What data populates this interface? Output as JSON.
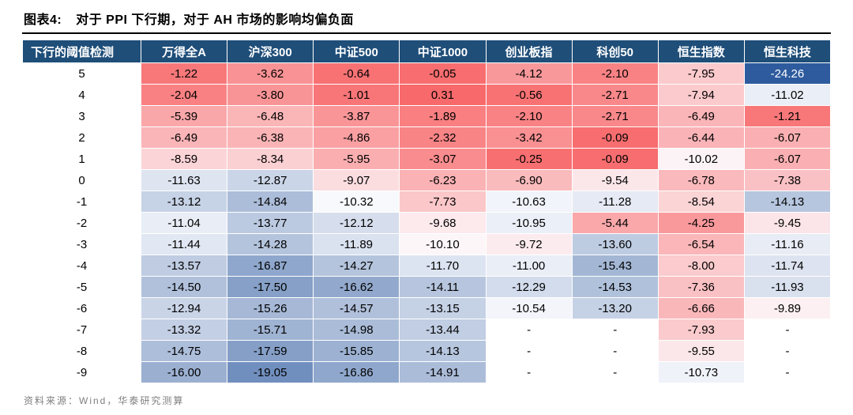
{
  "header": {
    "label": "图表4:",
    "title": "对于 PPI 下行期，对于 AH 市场的影响均偏负面"
  },
  "footer": {
    "source": "资料来源：Wind，华泰研究测算"
  },
  "colors": {
    "header_bg": "#1F4E79",
    "header_text": "#FFFFFF",
    "rule": "#000000",
    "source_text": "#7F7F7F"
  },
  "chart_data": {
    "type": "heatmap",
    "title": "对于 PPI 下行期，对于 AH 市场的影响均偏负面",
    "row_axis_label": "下行的阈值检测",
    "columns": [
      "万得全A",
      "沪深300",
      "中证500",
      "中证1000",
      "创业板指",
      "科创50",
      "恒生指数",
      "恒生科技"
    ],
    "rows": [
      {
        "threshold": "5",
        "values": [
          -1.22,
          -3.62,
          -0.64,
          -0.05,
          -4.12,
          -2.1,
          -7.95,
          -24.26
        ]
      },
      {
        "threshold": "4",
        "values": [
          -2.04,
          -3.8,
          -1.01,
          0.31,
          -0.56,
          -2.71,
          -7.94,
          -11.02
        ]
      },
      {
        "threshold": "3",
        "values": [
          -5.39,
          -6.48,
          -3.87,
          -1.89,
          -2.1,
          -2.71,
          -6.49,
          -1.21
        ]
      },
      {
        "threshold": "2",
        "values": [
          -6.49,
          -6.38,
          -4.86,
          -2.32,
          -3.42,
          -0.09,
          -6.44,
          -6.07
        ]
      },
      {
        "threshold": "1",
        "values": [
          -8.59,
          -8.34,
          -5.95,
          -3.07,
          -0.25,
          -0.09,
          -10.02,
          -6.07
        ]
      },
      {
        "threshold": "0",
        "values": [
          -11.63,
          -12.87,
          -9.07,
          -6.23,
          -6.9,
          -9.54,
          -6.78,
          -7.38
        ]
      },
      {
        "threshold": "-1",
        "values": [
          -13.12,
          -14.84,
          -10.32,
          -7.73,
          -10.63,
          -11.28,
          -8.54,
          -14.13
        ]
      },
      {
        "threshold": "-2",
        "values": [
          -11.04,
          -13.77,
          -12.12,
          -9.68,
          -10.95,
          -5.44,
          -4.25,
          -9.45
        ]
      },
      {
        "threshold": "-3",
        "values": [
          -11.44,
          -14.28,
          -11.89,
          -10.1,
          -9.72,
          -13.6,
          -6.54,
          -11.16
        ]
      },
      {
        "threshold": "-4",
        "values": [
          -13.57,
          -16.87,
          -14.27,
          -11.7,
          -11.0,
          -15.43,
          -8.0,
          -11.74
        ]
      },
      {
        "threshold": "-5",
        "values": [
          -14.5,
          -17.5,
          -16.62,
          -14.11,
          -12.29,
          -14.53,
          -7.36,
          -11.93
        ]
      },
      {
        "threshold": "-6",
        "values": [
          -12.94,
          -15.26,
          -14.57,
          -13.15,
          -10.54,
          -13.2,
          -6.66,
          -9.89
        ]
      },
      {
        "threshold": "-7",
        "values": [
          -13.32,
          -15.71,
          -14.98,
          -13.44,
          null,
          null,
          -7.93,
          null
        ]
      },
      {
        "threshold": "-8",
        "values": [
          -14.75,
          -17.59,
          -15.85,
          -14.13,
          null,
          null,
          -9.55,
          null
        ]
      },
      {
        "threshold": "-9",
        "values": [
          -16.0,
          -19.05,
          -16.86,
          -14.91,
          null,
          null,
          -10.73,
          null
        ]
      }
    ],
    "null_display": "-",
    "color_scale": {
      "min": -24.26,
      "mid": -10.2,
      "max": 0.31,
      "min_color": "#2E5B9E",
      "mid_color": "#FCFCFF",
      "max_color": "#F8696B"
    },
    "legend_position": "none",
    "grid": false
  }
}
